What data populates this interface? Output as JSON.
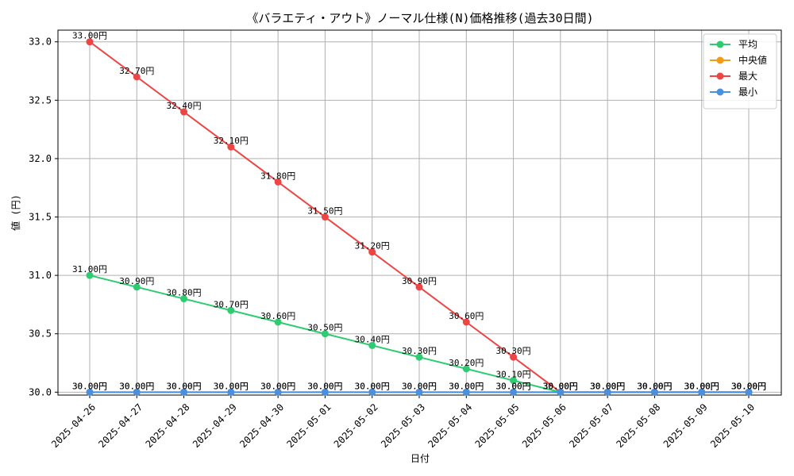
{
  "chart_data": {
    "type": "line",
    "title": "《バラエティ・アウト》ノーマル仕様(N)価格推移(過去30日間)",
    "xlabel": "日付",
    "ylabel": "値 (円)",
    "ylim": [
      29.975,
      33.1
    ],
    "yticks": [
      30.0,
      30.5,
      31.0,
      31.5,
      32.0,
      32.5,
      33.0
    ],
    "ytick_labels": [
      "30.0",
      "30.5",
      "31.0",
      "31.5",
      "32.0",
      "32.5",
      "33.0"
    ],
    "grid": true,
    "legend_position": "top-right",
    "categories": [
      "2025-04-26",
      "2025-04-27",
      "2025-04-28",
      "2025-04-29",
      "2025-04-30",
      "2025-05-01",
      "2025-05-02",
      "2025-05-03",
      "2025-05-04",
      "2025-05-05",
      "2025-05-06",
      "2025-05-07",
      "2025-05-08",
      "2025-05-09",
      "2025-05-10"
    ],
    "value_suffix": "円",
    "series": [
      {
        "name": "平均",
        "color": "#2ecc71",
        "values": [
          31.0,
          30.9,
          30.8,
          30.7,
          30.6,
          30.5,
          30.4,
          30.3,
          30.2,
          30.1,
          30.0,
          30.0,
          30.0,
          30.0,
          30.0
        ]
      },
      {
        "name": "中央値",
        "color": "#f39c12",
        "values": [
          30.0,
          30.0,
          30.0,
          30.0,
          30.0,
          30.0,
          30.0,
          30.0,
          30.0,
          30.0,
          30.0,
          30.0,
          30.0,
          30.0,
          30.0
        ]
      },
      {
        "name": "最大",
        "color": "#ef4444",
        "values": [
          33.0,
          32.7,
          32.4,
          32.1,
          31.8,
          31.5,
          31.2,
          30.9,
          30.6,
          30.3,
          30.0,
          30.0,
          30.0,
          30.0,
          30.0
        ]
      },
      {
        "name": "最小",
        "color": "#4a90e2",
        "values": [
          30.0,
          30.0,
          30.0,
          30.0,
          30.0,
          30.0,
          30.0,
          30.0,
          30.0,
          30.0,
          30.0,
          30.0,
          30.0,
          30.0,
          30.0
        ]
      }
    ]
  }
}
